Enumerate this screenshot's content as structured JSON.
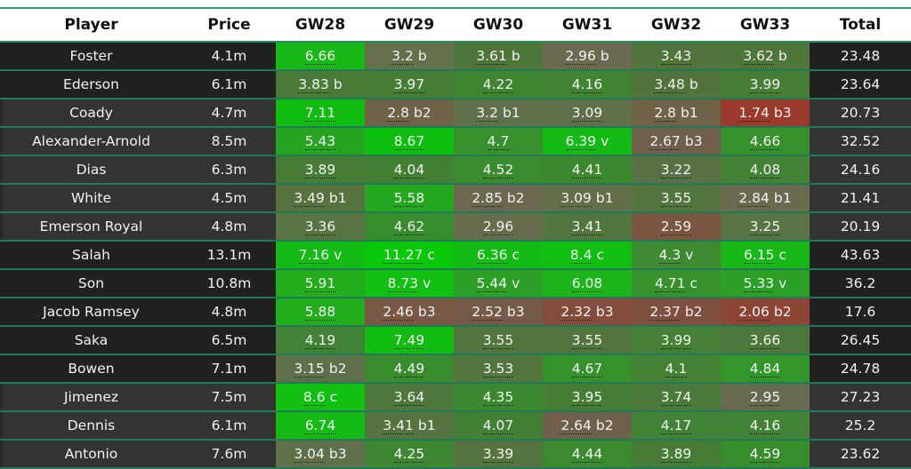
{
  "table": {
    "headers": [
      "Player",
      "Price",
      "GW28",
      "GW29",
      "GW30",
      "GW31",
      "GW32",
      "GW33",
      "Total"
    ],
    "rows": [
      {
        "player": "Foster",
        "price": "4.1m",
        "shade": "dark",
        "total": "23.48",
        "gw": [
          {
            "v": "6.66",
            "s": "",
            "c": "#17b817"
          },
          {
            "v": "3.2",
            "s": "b",
            "c": "#64704c"
          },
          {
            "v": "3.61",
            "s": "b",
            "c": "#4f763a"
          },
          {
            "v": "2.96",
            "s": "b",
            "c": "#696a50"
          },
          {
            "v": "3.43",
            "s": "",
            "c": "#52733c"
          },
          {
            "v": "3.62",
            "s": "b",
            "c": "#4f763a"
          }
        ]
      },
      {
        "player": "Ederson",
        "price": "6.1m",
        "shade": "dark",
        "total": "23.64",
        "gw": [
          {
            "v": "3.83",
            "s": "b",
            "c": "#4a7a38"
          },
          {
            "v": "3.97",
            "s": "",
            "c": "#467e35"
          },
          {
            "v": "4.22",
            "s": "",
            "c": "#3e8530"
          },
          {
            "v": "4.16",
            "s": "",
            "c": "#408431"
          },
          {
            "v": "3.48",
            "s": "b",
            "c": "#52733c"
          },
          {
            "v": "3.99",
            "s": "",
            "c": "#467e35"
          }
        ]
      },
      {
        "player": "Coady",
        "price": "4.7m",
        "shade": "light",
        "total": "20.73",
        "gw": [
          {
            "v": "7.11",
            "s": "",
            "c": "#12bd12"
          },
          {
            "v": "2.8",
            "s": "b2",
            "c": "#6e6248"
          },
          {
            "v": "3.2",
            "s": "b1",
            "c": "#60704a"
          },
          {
            "v": "3.09",
            "s": "",
            "c": "#5f704a"
          },
          {
            "v": "2.8",
            "s": "b1",
            "c": "#6e6248"
          },
          {
            "v": "1.74",
            "s": "b3",
            "c": "#9a3a2c"
          }
        ]
      },
      {
        "player": "Alexander-Arnold",
        "price": "8.5m",
        "shade": "light",
        "total": "32.52",
        "gw": [
          {
            "v": "5.43",
            "s": "",
            "c": "#27a521"
          },
          {
            "v": "8.67",
            "s": "",
            "c": "#0fbf0f"
          },
          {
            "v": "4.7",
            "s": "",
            "c": "#36902b"
          },
          {
            "v": "6.39",
            "s": "v",
            "c": "#14bb14"
          },
          {
            "v": "2.67",
            "s": "b3",
            "c": "#6e604a"
          },
          {
            "v": "4.66",
            "s": "",
            "c": "#36902b"
          }
        ]
      },
      {
        "player": "Dias",
        "price": "6.3m",
        "shade": "light",
        "total": "24.16",
        "gw": [
          {
            "v": "3.89",
            "s": "",
            "c": "#477c36"
          },
          {
            "v": "4.04",
            "s": "",
            "c": "#448034"
          },
          {
            "v": "4.52",
            "s": "",
            "c": "#3a8a2e"
          },
          {
            "v": "4.41",
            "s": "",
            "c": "#3c882f"
          },
          {
            "v": "3.22",
            "s": "",
            "c": "#5a7145"
          },
          {
            "v": "4.08",
            "s": "",
            "c": "#438134"
          }
        ]
      },
      {
        "player": "White",
        "price": "4.5m",
        "shade": "light",
        "total": "21.41",
        "gw": [
          {
            "v": "3.49",
            "s": "b1",
            "c": "#58723f"
          },
          {
            "v": "5.58",
            "s": "",
            "c": "#25a820"
          },
          {
            "v": "2.85",
            "s": "b2",
            "c": "#6c6850"
          },
          {
            "v": "3.09",
            "s": "b1",
            "c": "#62704a"
          },
          {
            "v": "3.55",
            "s": "",
            "c": "#52763d"
          },
          {
            "v": "2.84",
            "s": "b1",
            "c": "#6a6a4e"
          }
        ]
      },
      {
        "player": "Emerson Royal",
        "price": "4.8m",
        "shade": "light",
        "total": "20.19",
        "gw": [
          {
            "v": "3.36",
            "s": "",
            "c": "#587443"
          },
          {
            "v": "4.62",
            "s": "",
            "c": "#378c2c"
          },
          {
            "v": "2.96",
            "s": "",
            "c": "#666c4c"
          },
          {
            "v": "3.41",
            "s": "",
            "c": "#52773e"
          },
          {
            "v": "2.59",
            "s": "",
            "c": "#7a5643"
          },
          {
            "v": "3.25",
            "s": "",
            "c": "#587444"
          }
        ]
      },
      {
        "player": "Salah",
        "price": "13.1m",
        "shade": "dark",
        "total": "43.63",
        "gw": [
          {
            "v": "7.16",
            "s": "v",
            "c": "#14bb14"
          },
          {
            "v": "11.27",
            "s": "c",
            "c": "#08c808"
          },
          {
            "v": "6.36",
            "s": "c",
            "c": "#14bb14"
          },
          {
            "v": "8.4",
            "s": "c",
            "c": "#10bf10"
          },
          {
            "v": "4.3",
            "s": "v",
            "c": "#3e8932"
          },
          {
            "v": "6.15",
            "s": "c",
            "c": "#17b817"
          }
        ]
      },
      {
        "player": "Son",
        "price": "10.8m",
        "shade": "dark",
        "total": "36.2",
        "gw": [
          {
            "v": "5.91",
            "s": "",
            "c": "#21ad1c"
          },
          {
            "v": "8.73",
            "s": "v",
            "c": "#12c012"
          },
          {
            "v": "5.44",
            "s": "v",
            "c": "#2ca026"
          },
          {
            "v": "6.08",
            "s": "",
            "c": "#1db31a"
          },
          {
            "v": "4.71",
            "s": "c",
            "c": "#36912c"
          },
          {
            "v": "5.33",
            "s": "v",
            "c": "#2ca026"
          }
        ]
      },
      {
        "player": "Jacob Ramsey",
        "price": "4.8m",
        "shade": "dark",
        "total": "17.6",
        "gw": [
          {
            "v": "5.88",
            "s": "",
            "c": "#21ad1c"
          },
          {
            "v": "2.46",
            "s": "b3",
            "c": "#7a5846"
          },
          {
            "v": "2.52",
            "s": "b3",
            "c": "#765a48"
          },
          {
            "v": "2.32",
            "s": "b3",
            "c": "#844c3c"
          },
          {
            "v": "2.37",
            "s": "b2",
            "c": "#7e503f"
          },
          {
            "v": "2.06",
            "s": "b2",
            "c": "#8c4434"
          }
        ]
      },
      {
        "player": "Saka",
        "price": "6.5m",
        "shade": "dark",
        "total": "26.45",
        "gw": [
          {
            "v": "4.19",
            "s": "",
            "c": "#428236"
          },
          {
            "v": "7.49",
            "s": "",
            "c": "#12bd12"
          },
          {
            "v": "3.55",
            "s": "",
            "c": "#52763d"
          },
          {
            "v": "3.55",
            "s": "",
            "c": "#52763d"
          },
          {
            "v": "3.99",
            "s": "",
            "c": "#468036"
          },
          {
            "v": "3.66",
            "s": "",
            "c": "#4e783b"
          }
        ]
      },
      {
        "player": "Bowen",
        "price": "7.1m",
        "shade": "dark",
        "total": "24.78",
        "gw": [
          {
            "v": "3.15",
            "s": "b2",
            "c": "#5e704a"
          },
          {
            "v": "4.49",
            "s": "",
            "c": "#3a8b2e"
          },
          {
            "v": "3.53",
            "s": "",
            "c": "#52763d"
          },
          {
            "v": "4.67",
            "s": "",
            "c": "#35922b"
          },
          {
            "v": "4.1",
            "s": "",
            "c": "#438134"
          },
          {
            "v": "4.84",
            "s": "",
            "c": "#32962a"
          }
        ]
      },
      {
        "player": "Jimenez",
        "price": "7.5m",
        "shade": "light",
        "total": "27.23",
        "gw": [
          {
            "v": "8.6",
            "s": "c",
            "c": "#12c012"
          },
          {
            "v": "3.64",
            "s": "",
            "c": "#4e783b"
          },
          {
            "v": "4.35",
            "s": "",
            "c": "#3c8830"
          },
          {
            "v": "3.95",
            "s": "",
            "c": "#467e36"
          },
          {
            "v": "3.74",
            "s": "",
            "c": "#4c7a3a"
          },
          {
            "v": "2.95",
            "s": "",
            "c": "#666a4e"
          }
        ]
      },
      {
        "player": "Dennis",
        "price": "6.1m",
        "shade": "light",
        "total": "25.2",
        "gw": [
          {
            "v": "6.74",
            "s": "",
            "c": "#15ba15"
          },
          {
            "v": "3.41",
            "s": "b1",
            "c": "#56743f"
          },
          {
            "v": "4.07",
            "s": "",
            "c": "#448034"
          },
          {
            "v": "2.64",
            "s": "b2",
            "c": "#6e604a"
          },
          {
            "v": "4.17",
            "s": "",
            "c": "#428236"
          },
          {
            "v": "4.16",
            "s": "",
            "c": "#428236"
          }
        ]
      },
      {
        "player": "Antonio",
        "price": "7.6m",
        "shade": "light",
        "total": "23.62",
        "gw": [
          {
            "v": "3.04",
            "s": "b3",
            "c": "#60704a"
          },
          {
            "v": "4.25",
            "s": "",
            "c": "#3e8632"
          },
          {
            "v": "3.39",
            "s": "",
            "c": "#56743f"
          },
          {
            "v": "4.44",
            "s": "",
            "c": "#3b8a2f"
          },
          {
            "v": "3.89",
            "s": "",
            "c": "#477c36"
          },
          {
            "v": "4.59",
            "s": "",
            "c": "#378d2c"
          }
        ]
      }
    ]
  }
}
